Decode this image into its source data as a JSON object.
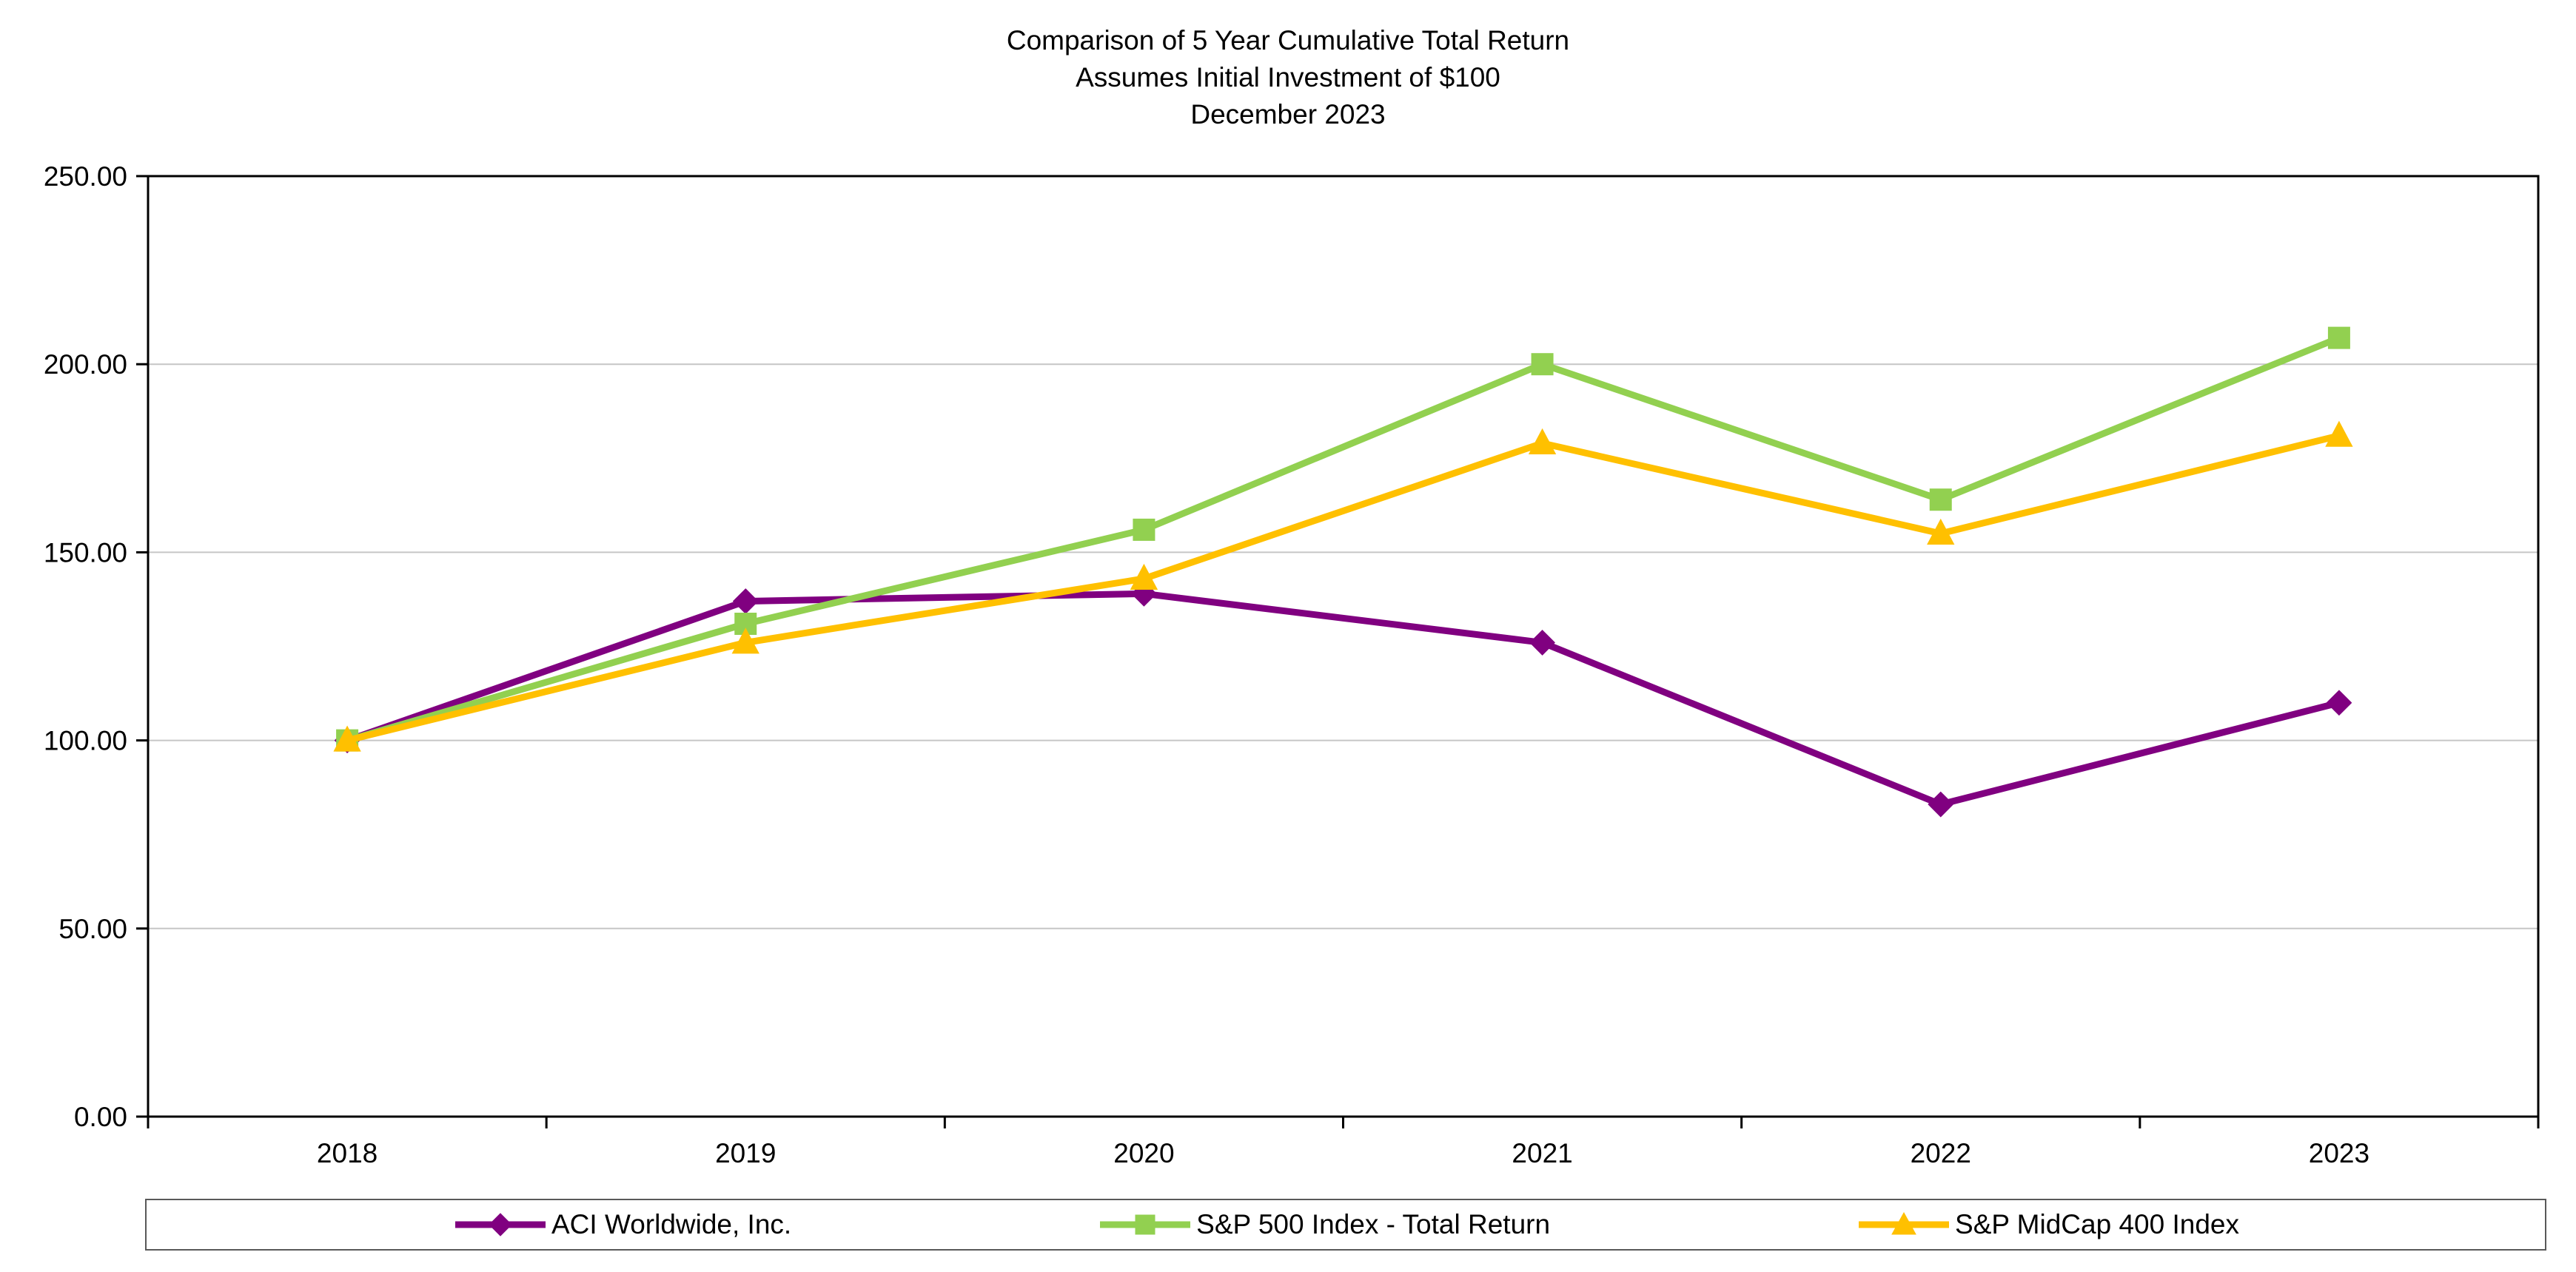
{
  "chart_data": {
    "type": "line",
    "title": "Comparison of 5 Year Cumulative Total Return",
    "subtitle": "Assumes Initial Investment of $100",
    "date_label": "December 2023",
    "categories": [
      "2018",
      "2019",
      "2020",
      "2021",
      "2022",
      "2023"
    ],
    "series": [
      {
        "name": "ACI Worldwide, Inc.",
        "color": "#800080",
        "marker": "diamond",
        "values": [
          100,
          137,
          139,
          126,
          83,
          110
        ]
      },
      {
        "name": "S&P 500 Index - Total Return",
        "color": "#92D050",
        "marker": "square",
        "values": [
          100,
          131,
          156,
          200,
          164,
          207
        ]
      },
      {
        "name": "S&P MidCap 400 Index",
        "color": "#FFC000",
        "marker": "triangle",
        "values": [
          100,
          126,
          143,
          179,
          155,
          181
        ]
      }
    ],
    "xlabel": "",
    "ylabel": "",
    "ylim": [
      0,
      250
    ],
    "ytick_interval": 50,
    "ytick_labels": [
      "0.00",
      "50.00",
      "100.00",
      "150.00",
      "200.00",
      "250.00"
    ],
    "grid": true,
    "grid_color": "#C6C6C6",
    "plot_border_color": "#000000",
    "legend_position": "bottom"
  }
}
